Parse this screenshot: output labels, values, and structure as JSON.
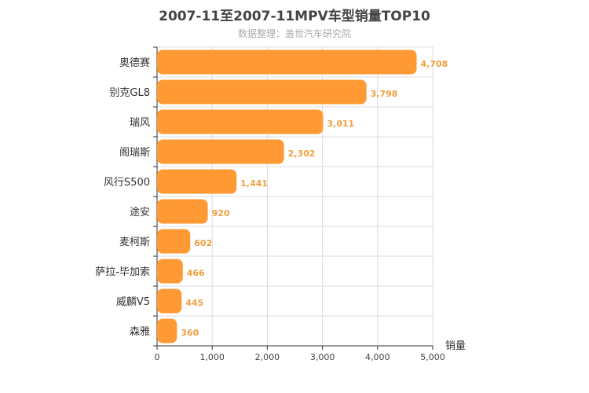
{
  "chart_data": {
    "type": "bar",
    "orientation": "horizontal",
    "title": "2007-11至2007-11MPV车型销量TOP10",
    "subtitle": "数据整理：盖世汽车研究院",
    "categories": [
      "奥德赛",
      "别克GL8",
      "瑞风",
      "阁瑞斯",
      "风行S500",
      "途安",
      "麦柯斯",
      "萨拉-毕加索",
      "威麟V5",
      "森雅"
    ],
    "values": [
      4708,
      3798,
      3011,
      2302,
      1441,
      920,
      602,
      466,
      445,
      360
    ],
    "value_labels": [
      "4,708",
      "3,798",
      "3,011",
      "2,302",
      "1,441",
      "920",
      "602",
      "466",
      "445",
      "360"
    ],
    "xlabel": "销量",
    "xlim": [
      0,
      5000
    ],
    "xticks": [
      0,
      1000,
      2000,
      3000,
      4000,
      5000
    ],
    "xtick_labels": [
      "0",
      "1,000",
      "2,000",
      "3,000",
      "4,000",
      "5,000"
    ],
    "grid": true,
    "bar_color": "#ff9933",
    "label_color": "#f0a040"
  }
}
